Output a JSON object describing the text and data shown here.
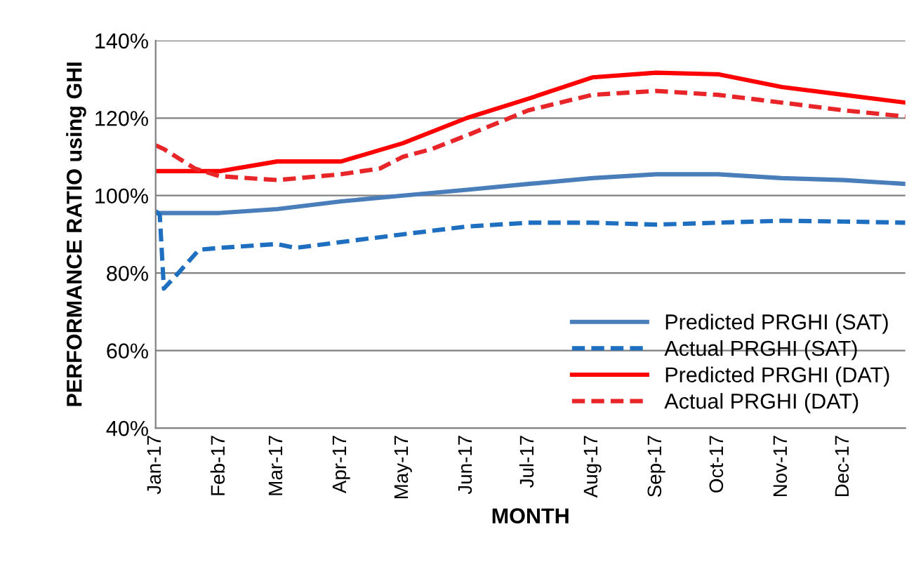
{
  "chart_data": {
    "type": "line",
    "xlabel": "MONTH",
    "ylabel": "PERFORMANCE RATIO using GHI",
    "xlim": [
      "2017-01-01",
      "2017-12-31"
    ],
    "xticks": [
      {
        "value": "2017-01-01",
        "label": "Jan-17"
      },
      {
        "value": "2017-02-01",
        "label": "Feb-17"
      },
      {
        "value": "2017-03-01",
        "label": "Mar-17"
      },
      {
        "value": "2017-04-01",
        "label": "Apr-17"
      },
      {
        "value": "2017-05-01",
        "label": "May-17"
      },
      {
        "value": "2017-06-01",
        "label": "Jun-17"
      },
      {
        "value": "2017-07-01",
        "label": "Jul-17"
      },
      {
        "value": "2017-08-01",
        "label": "Aug-17"
      },
      {
        "value": "2017-09-01",
        "label": "Sep-17"
      },
      {
        "value": "2017-10-01",
        "label": "Oct-17"
      },
      {
        "value": "2017-11-01",
        "label": "Nov-17"
      },
      {
        "value": "2017-12-01",
        "label": "Dec-17"
      }
    ],
    "ylim": [
      40,
      140
    ],
    "yticks": [
      {
        "value": 40,
        "label": "40%"
      },
      {
        "value": 60,
        "label": "60%"
      },
      {
        "value": 80,
        "label": "80%"
      },
      {
        "value": 100,
        "label": "100%"
      },
      {
        "value": 120,
        "label": "120%"
      },
      {
        "value": 140,
        "label": "140%"
      }
    ],
    "grid": "y",
    "legend": "bottom right",
    "series": [
      {
        "name": "Predicted PRGHI (SAT)",
        "color": "#4a7ebb",
        "line_style": "solid",
        "x": [
          "2017-01-01",
          "2017-02-01",
          "2017-03-01",
          "2017-04-01",
          "2017-05-01",
          "2017-06-01",
          "2017-07-01",
          "2017-08-01",
          "2017-09-01",
          "2017-10-01",
          "2017-11-01",
          "2017-12-01",
          "2017-12-31"
        ],
        "values": [
          95.5,
          95.5,
          96.5,
          98.5,
          100,
          101.5,
          103,
          104.5,
          105.5,
          105.5,
          104.5,
          104,
          103
        ]
      },
      {
        "name": "Actual PRGHI (SAT)",
        "color": "#1f6fc0",
        "line_style": "dashed",
        "x": [
          "2017-01-01",
          "2017-01-03",
          "2017-01-05",
          "2017-01-12",
          "2017-01-22",
          "2017-02-01",
          "2017-03-01",
          "2017-03-10",
          "2017-04-01",
          "2017-05-01",
          "2017-06-01",
          "2017-07-01",
          "2017-08-01",
          "2017-09-01",
          "2017-10-01",
          "2017-11-01",
          "2017-12-01",
          "2017-12-31"
        ],
        "values": [
          96,
          95,
          76,
          80,
          86,
          86.5,
          87.5,
          86.5,
          88,
          90,
          92,
          93,
          93,
          92.5,
          93,
          93.5,
          93.3,
          93
        ]
      },
      {
        "name": "Predicted PRGHI (DAT)",
        "color": "#ff0000",
        "line_style": "solid",
        "x": [
          "2017-01-01",
          "2017-02-01",
          "2017-03-01",
          "2017-04-01",
          "2017-05-01",
          "2017-06-01",
          "2017-07-01",
          "2017-08-01",
          "2017-09-01",
          "2017-10-01",
          "2017-11-01",
          "2017-12-01",
          "2017-12-31"
        ],
        "values": [
          106.3,
          106.3,
          108.8,
          108.8,
          113.5,
          120,
          125,
          130.5,
          131.7,
          131.3,
          128,
          126,
          124
        ]
      },
      {
        "name": "Actual PRGHI (DAT)",
        "color": "#e8262a",
        "line_style": "dashed",
        "x": [
          "2017-01-01",
          "2017-01-05",
          "2017-01-20",
          "2017-02-01",
          "2017-03-01",
          "2017-04-01",
          "2017-04-20",
          "2017-05-01",
          "2017-05-15",
          "2017-06-01",
          "2017-07-01",
          "2017-08-01",
          "2017-09-01",
          "2017-10-01",
          "2017-11-01",
          "2017-12-01",
          "2017-12-31"
        ],
        "values": [
          113,
          112,
          107,
          105,
          104,
          105.5,
          107,
          110,
          112,
          115.5,
          122,
          126,
          127,
          126,
          124,
          122,
          120.4
        ]
      }
    ]
  }
}
